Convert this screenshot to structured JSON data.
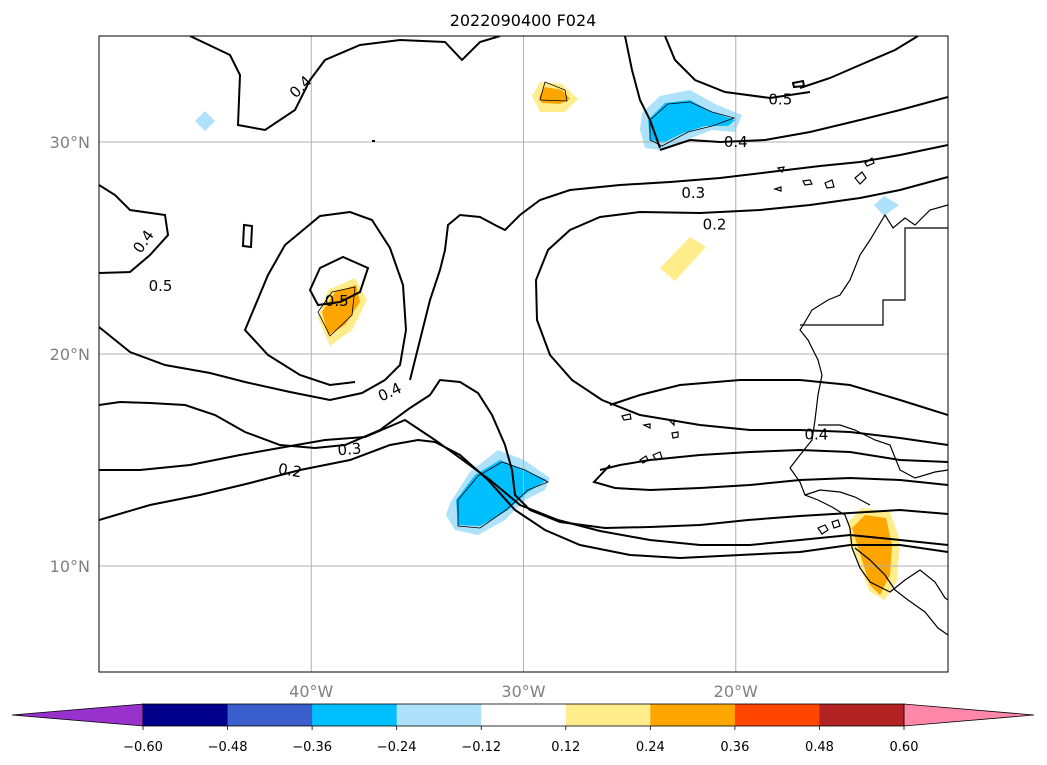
{
  "title": "2022090400 F024",
  "axes": {
    "x_ticks": [
      {
        "value": -40,
        "label": "40°W"
      },
      {
        "value": -30,
        "label": "30°W"
      },
      {
        "value": -20,
        "label": "20°W"
      }
    ],
    "y_ticks": [
      {
        "value": 30,
        "label": "30°N"
      },
      {
        "value": 20,
        "label": "20°N"
      },
      {
        "value": 10,
        "label": "10°N"
      }
    ],
    "lon_range": [
      -50,
      -10
    ],
    "lat_range": [
      5,
      35
    ],
    "grid": true
  },
  "colorbar": {
    "orientation": "horizontal",
    "extend": "both",
    "under_color": "#9932CC",
    "over_color": "#FF88AA",
    "colors": [
      "#00008B",
      "#3A5FCD",
      "#00BFFF",
      "#ADE2FA",
      "#FFFFFF",
      "#FFEC8B",
      "#FFA500",
      "#FF4500",
      "#B22222"
    ],
    "tick_labels": [
      "−0.60",
      "−0.48",
      "−0.36",
      "−0.24",
      "−0.12",
      "0.12",
      "0.24",
      "0.36",
      "0.48",
      "0.60"
    ]
  },
  "contour_labels": [
    {
      "text": "0.4",
      "lon": -40.5,
      "lat": 32.6,
      "rot": -45
    },
    {
      "text": "0.5",
      "lon": -47.1,
      "lat": 23.2,
      "rot": 0
    },
    {
      "text": "0.4",
      "lon": -47.9,
      "lat": 25.3,
      "rot": -55
    },
    {
      "text": "0.5",
      "lon": -38.8,
      "lat": 22.5,
      "rot": 0
    },
    {
      "text": "0.4",
      "lon": -36.3,
      "lat": 18.2,
      "rot": -25
    },
    {
      "text": "0.3",
      "lon": -38.2,
      "lat": 15.5,
      "rot": -5
    },
    {
      "text": "0.2",
      "lon": -41.0,
      "lat": 14.5,
      "rot": 10
    },
    {
      "text": "0.5",
      "lon": -17.9,
      "lat": 32.0,
      "rot": 0
    },
    {
      "text": "0.4",
      "lon": -20.0,
      "lat": 30.0,
      "rot": 0
    },
    {
      "text": "0.3",
      "lon": -22.0,
      "lat": 27.6,
      "rot": 0
    },
    {
      "text": "0.2",
      "lon": -21.0,
      "lat": 26.1,
      "rot": 0
    },
    {
      "text": "0.4",
      "lon": -16.2,
      "lat": 16.2,
      "rot": 0
    }
  ]
}
